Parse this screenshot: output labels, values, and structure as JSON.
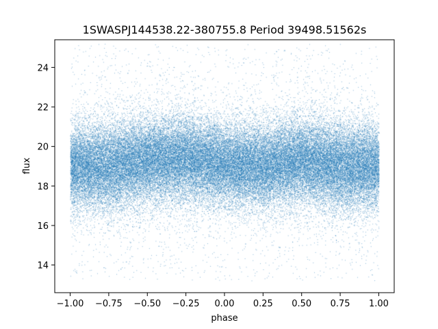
{
  "chart_data": {
    "type": "scatter",
    "title": "1SWASPJ144538.22-380755.8 Period 39498.51562s",
    "xlabel": "phase",
    "ylabel": "flux",
    "xlim": [
      -1.1,
      1.1
    ],
    "ylim": [
      12.6,
      25.4
    ],
    "xticks": [
      -1.0,
      -0.75,
      -0.5,
      -0.25,
      0.0,
      0.25,
      0.5,
      0.75,
      1.0
    ],
    "xtick_labels": [
      "−1.00",
      "−0.75",
      "−0.50",
      "−0.25",
      "0.00",
      "0.25",
      "0.50",
      "0.75",
      "1.00"
    ],
    "yticks": [
      14,
      16,
      18,
      20,
      22,
      24
    ],
    "ytick_labels": [
      "14",
      "16",
      "18",
      "20",
      "22",
      "24"
    ],
    "grid": false,
    "marker_color": "#1f77b4",
    "x_range": [
      -1.0,
      1.0
    ],
    "y_range": [
      13.2,
      25.2
    ],
    "series": [
      {
        "values_description_omitted": false,
        "profile": {
          "phase": [
            -1.0,
            -0.75,
            -0.5,
            -0.25,
            0.0,
            0.25,
            0.5,
            0.75,
            1.0
          ],
          "median_flux": [
            19.0,
            19.0,
            19.3,
            19.4,
            19.1,
            19.0,
            19.3,
            19.0,
            19.0
          ],
          "core_spread_low": [
            17.3,
            17.0,
            17.3,
            17.3,
            17.3,
            17.2,
            17.3,
            17.0,
            17.3
          ],
          "core_spread_high": [
            21.3,
            21.4,
            21.5,
            21.6,
            21.3,
            21.3,
            21.5,
            21.4,
            21.3
          ]
        }
      }
    ]
  }
}
